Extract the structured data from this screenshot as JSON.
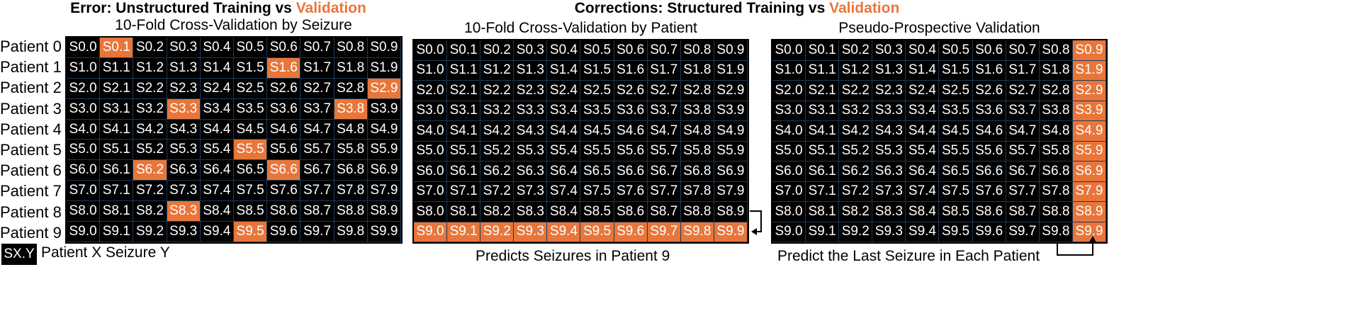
{
  "left_title": {
    "prefix": "Error: Unstructured Training vs ",
    "highlight": "Validation"
  },
  "right_title": {
    "prefix": "Corrections: Structured Training vs ",
    "highlight": "Validation"
  },
  "panels": [
    {
      "subtitle": "10-Fold Cross-Validation by Seizure",
      "highlighted_cells": [
        [
          0,
          1
        ],
        [
          1,
          6
        ],
        [
          2,
          9
        ],
        [
          3,
          3
        ],
        [
          3,
          8
        ],
        [
          5,
          5
        ],
        [
          6,
          2
        ],
        [
          6,
          6
        ],
        [
          8,
          3
        ],
        [
          9,
          5
        ]
      ],
      "caption": ""
    },
    {
      "subtitle": "10-Fold Cross-Validation by Patient",
      "highlighted_cells": [
        [
          9,
          0
        ],
        [
          9,
          1
        ],
        [
          9,
          2
        ],
        [
          9,
          3
        ],
        [
          9,
          4
        ],
        [
          9,
          5
        ],
        [
          9,
          6
        ],
        [
          9,
          7
        ],
        [
          9,
          8
        ],
        [
          9,
          9
        ]
      ],
      "caption": "Predicts Seizures in Patient 9"
    },
    {
      "subtitle": "Pseudo-Prospective Validation",
      "highlighted_cells": [
        [
          0,
          9
        ],
        [
          1,
          9
        ],
        [
          2,
          9
        ],
        [
          3,
          9
        ],
        [
          4,
          9
        ],
        [
          5,
          9
        ],
        [
          6,
          9
        ],
        [
          7,
          9
        ],
        [
          8,
          9
        ],
        [
          9,
          9
        ]
      ],
      "caption": "Predict the Last Seizure in Each Patient"
    }
  ],
  "row_labels": [
    "Patient 0",
    "Patient 1",
    "Patient 2",
    "Patient 3",
    "Patient 4",
    "Patient 5",
    "Patient 6",
    "Patient 7",
    "Patient 8",
    "Patient 9"
  ],
  "cell_labels": [
    [
      "S0.0",
      "S0.1",
      "S0.2",
      "S0.3",
      "S0.4",
      "S0.5",
      "S0.6",
      "S0.7",
      "S0.8",
      "S0.9"
    ],
    [
      "S1.0",
      "S1.1",
      "S1.2",
      "S1.3",
      "S1.4",
      "S1.5",
      "S1.6",
      "S1.7",
      "S1.8",
      "S1.9"
    ],
    [
      "S2.0",
      "S2.1",
      "S2.2",
      "S2.3",
      "S2.4",
      "S2.5",
      "S2.6",
      "S2.7",
      "S2.8",
      "S2.9"
    ],
    [
      "S3.0",
      "S3.1",
      "S3.2",
      "S3.3",
      "S3.4",
      "S3.5",
      "S3.6",
      "S3.7",
      "S3.8",
      "S3.9"
    ],
    [
      "S4.0",
      "S4.1",
      "S4.2",
      "S4.3",
      "S4.4",
      "S4.5",
      "S4.6",
      "S4.7",
      "S4.8",
      "S4.9"
    ],
    [
      "S5.0",
      "S5.1",
      "S5.2",
      "S5.3",
      "S5.4",
      "S5.5",
      "S5.6",
      "S5.7",
      "S5.8",
      "S5.9"
    ],
    [
      "S6.0",
      "S6.1",
      "S6.2",
      "S6.3",
      "S6.4",
      "S6.5",
      "S6.6",
      "S6.7",
      "S6.8",
      "S6.9"
    ],
    [
      "S7.0",
      "S7.1",
      "S7.2",
      "S7.3",
      "S7.4",
      "S7.5",
      "S7.6",
      "S7.7",
      "S7.8",
      "S7.9"
    ],
    [
      "S8.0",
      "S8.1",
      "S8.2",
      "S8.3",
      "S8.4",
      "S8.5",
      "S8.6",
      "S8.7",
      "S8.8",
      "S8.9"
    ],
    [
      "S9.0",
      "S9.1",
      "S9.2",
      "S9.3",
      "S9.4",
      "S9.5",
      "S9.6",
      "S9.7",
      "S9.8",
      "S9.9"
    ]
  ],
  "legend": {
    "box": "SX.Y",
    "text": "Patient X Seizure Y"
  },
  "colors": {
    "validation": "#e8763a",
    "cell": "#000000",
    "cell_text": "#ffffff"
  }
}
